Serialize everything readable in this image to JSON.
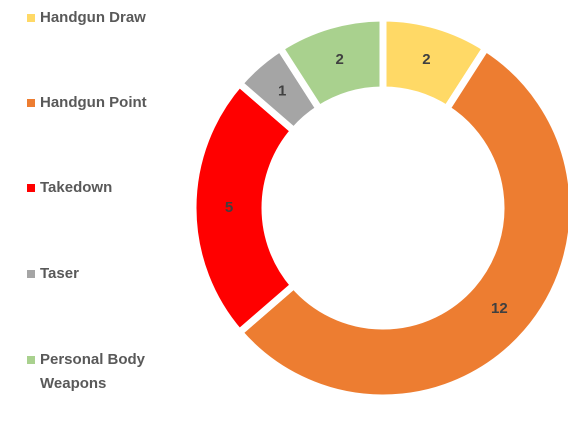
{
  "chart_data": {
    "type": "donut",
    "categories": [
      "Handgun Draw",
      "Handgun Point",
      "Takedown",
      "Taser",
      "Personal Body Weapons"
    ],
    "values": [
      2,
      12,
      5,
      1,
      2
    ],
    "colors": [
      "#FFD966",
      "#ED7D31",
      "#FF0000",
      "#A5A5A5",
      "#A9D18E"
    ],
    "legend": "left"
  }
}
